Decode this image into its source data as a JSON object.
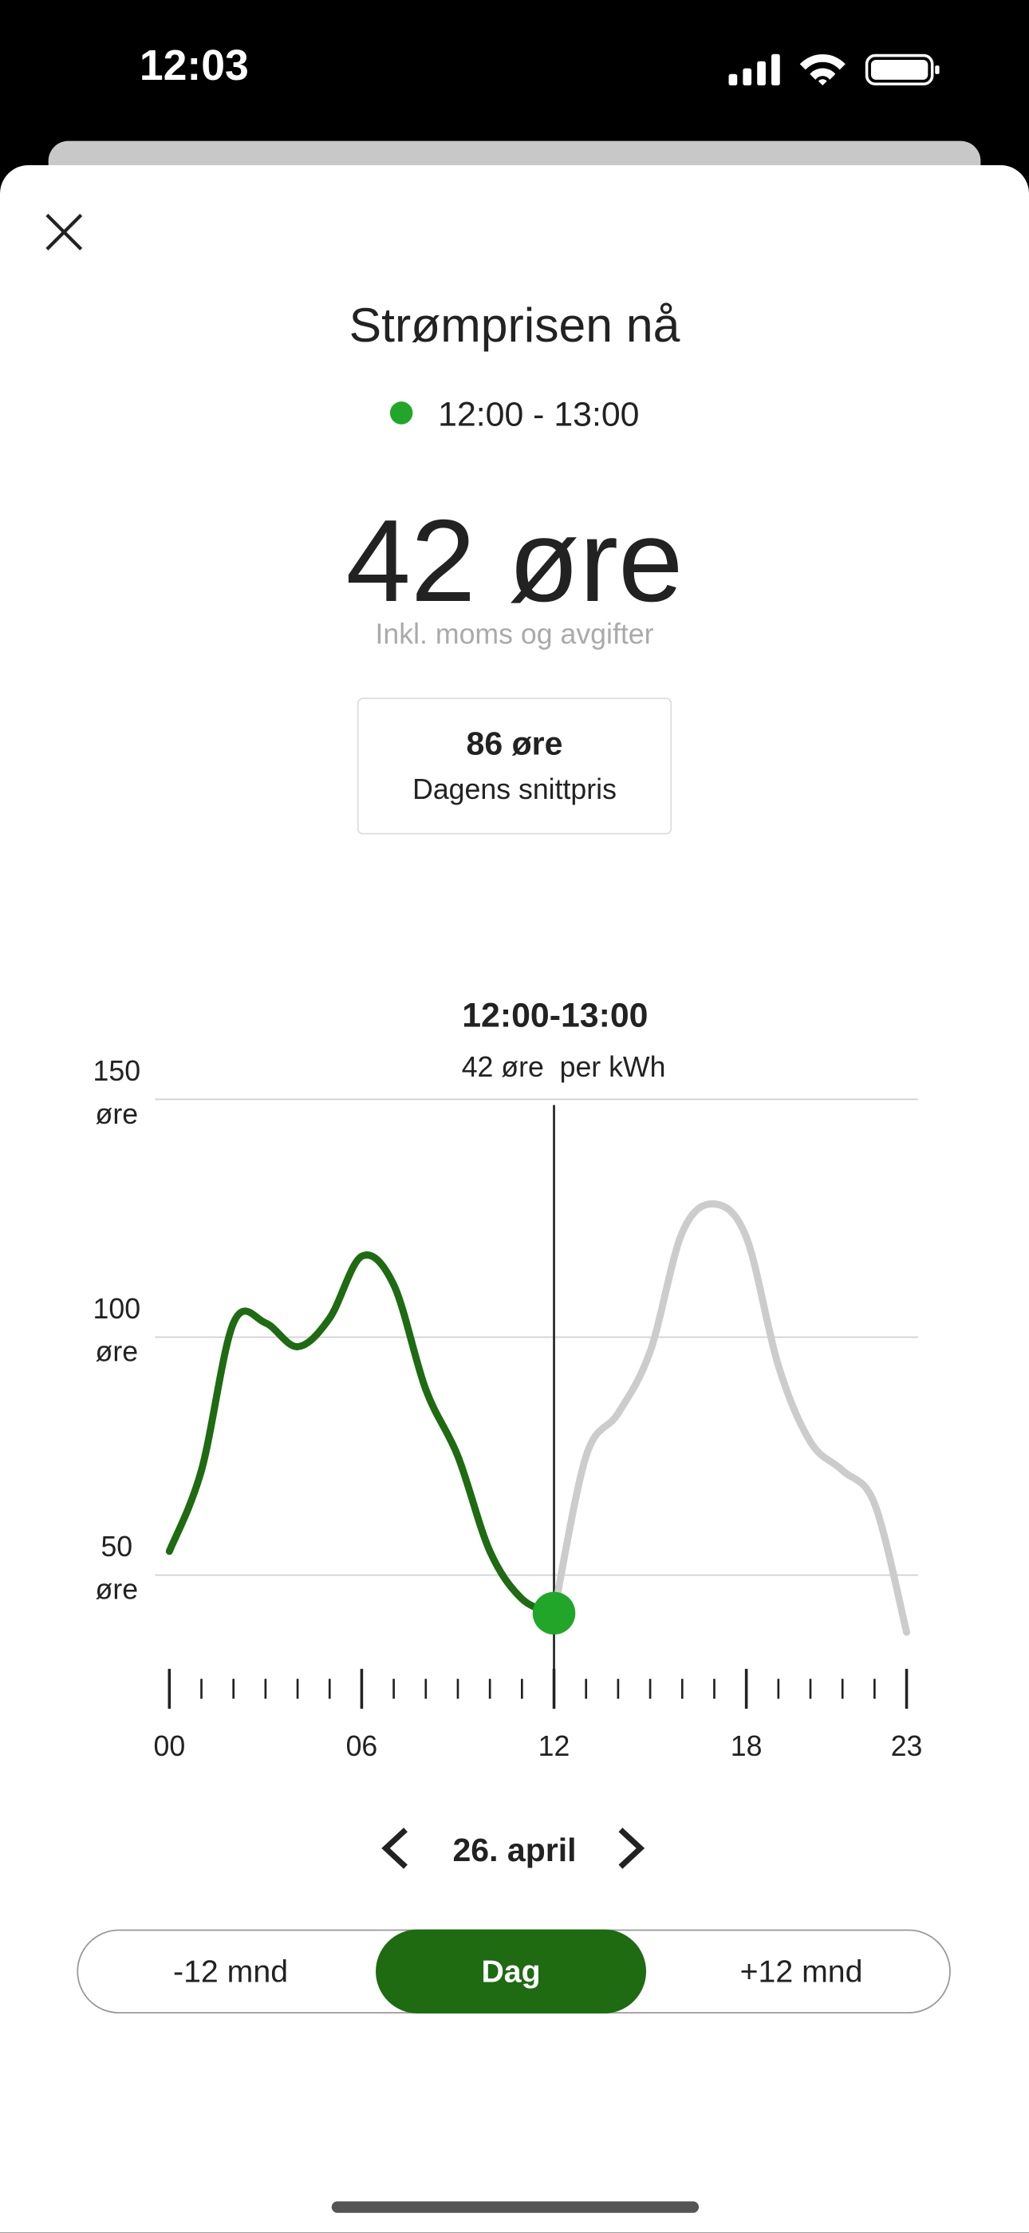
{
  "status_bar": {
    "time": "12:03"
  },
  "header": {
    "title": "Strømprisen nå",
    "period": "12:00 - 13:00",
    "price": "42 øre",
    "price_note": "Inkl. moms og avgifter",
    "average_price": "86 øre",
    "average_label": "Dagens snittpris"
  },
  "chart_data": {
    "type": "line",
    "x": [
      0,
      1,
      2,
      3,
      4,
      5,
      6,
      7,
      8,
      9,
      10,
      11,
      12,
      13,
      14,
      15,
      16,
      17,
      18,
      19,
      20,
      21,
      22,
      23
    ],
    "values": [
      55,
      72,
      103,
      103,
      98,
      104,
      117,
      111,
      89,
      75,
      55,
      45,
      42,
      75,
      84,
      97,
      122,
      128,
      121,
      94,
      78,
      72,
      65,
      38
    ],
    "color": "#1e6b12",
    "future_color": "#cccccc",
    "current_x": 12,
    "marker_color": "#22a62a",
    "xlim": [
      0,
      23
    ],
    "ylim": [
      30,
      150
    ],
    "yticks": [
      {
        "value": 50,
        "label": "50 øre"
      },
      {
        "value": 100,
        "label": "100 øre"
      },
      {
        "value": 150,
        "label": "150 øre"
      }
    ],
    "xticks": [
      {
        "value": 0,
        "label": "00"
      },
      {
        "value": 1,
        "label": null
      },
      {
        "value": 2,
        "label": null
      },
      {
        "value": 3,
        "label": null
      },
      {
        "value": 4,
        "label": null
      },
      {
        "value": 5,
        "label": null
      },
      {
        "value": 6,
        "label": "06"
      },
      {
        "value": 7,
        "label": null
      },
      {
        "value": 8,
        "label": null
      },
      {
        "value": 9,
        "label": null
      },
      {
        "value": 10,
        "label": null
      },
      {
        "value": 11,
        "label": null
      },
      {
        "value": 12,
        "label": "12"
      },
      {
        "value": 13,
        "label": null
      },
      {
        "value": 14,
        "label": null
      },
      {
        "value": 15,
        "label": null
      },
      {
        "value": 16,
        "label": null
      },
      {
        "value": 17,
        "label": null
      },
      {
        "value": 18,
        "label": "18"
      },
      {
        "value": 19,
        "label": null
      },
      {
        "value": 20,
        "label": null
      },
      {
        "value": 21,
        "label": null
      },
      {
        "value": 22,
        "label": null
      },
      {
        "value": 23,
        "label": "23"
      }
    ],
    "grid": true,
    "tooltip": {
      "title": "12:00-13:00",
      "text": "42 øre  per kWh"
    }
  },
  "date_nav": {
    "date": "26. april"
  },
  "segments": {
    "items": [
      "-12 mnd",
      "Dag",
      "+12 mnd"
    ],
    "active": 1
  }
}
